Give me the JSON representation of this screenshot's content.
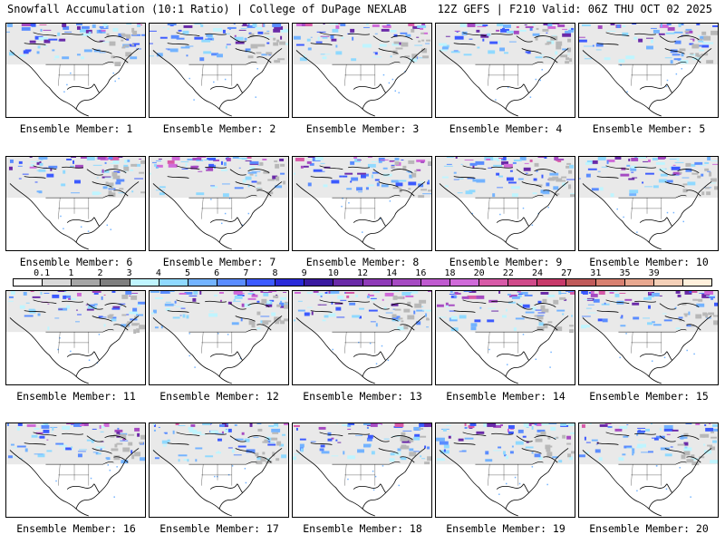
{
  "header": {
    "left": "Snowfall Accumulation (10:1 Ratio) | College of DuPage NEXLAB",
    "right": "12Z GEFS | F210 Valid: 06Z THU OCT 02 2025"
  },
  "members": [
    "Ensemble Member: 1",
    "Ensemble Member: 2",
    "Ensemble Member: 3",
    "Ensemble Member: 4",
    "Ensemble Member: 5",
    "Ensemble Member: 6",
    "Ensemble Member: 7",
    "Ensemble Member: 8",
    "Ensemble Member: 9",
    "Ensemble Member: 10",
    "Ensemble Member: 11",
    "Ensemble Member: 12",
    "Ensemble Member: 13",
    "Ensemble Member: 14",
    "Ensemble Member: 15",
    "Ensemble Member: 16",
    "Ensemble Member: 17",
    "Ensemble Member: 18",
    "Ensemble Member: 19",
    "Ensemble Member: 20"
  ],
  "colorbar": {
    "labels": [
      "0.1",
      "1",
      "2",
      "3",
      "4",
      "5",
      "6",
      "7",
      "8",
      "9",
      "10",
      "12",
      "14",
      "16",
      "18",
      "20",
      "22",
      "24",
      "27",
      "31",
      "35",
      "39"
    ],
    "colors": [
      "#ffffff",
      "#d9d9d9",
      "#a6a6a6",
      "#7f7f7f",
      "#bff5ff",
      "#8fd9ff",
      "#73b3ff",
      "#5a8cff",
      "#3c5aff",
      "#2a2ad9",
      "#3a1aa0",
      "#6a2aa8",
      "#8f3ab8",
      "#a64ac2",
      "#c05ad0",
      "#d06ad9",
      "#d85aa8",
      "#d04a8a",
      "#c83a6a",
      "#c05a5a",
      "#d88070",
      "#e8a890",
      "#f4d0b8",
      "#fff0dc"
    ]
  }
}
